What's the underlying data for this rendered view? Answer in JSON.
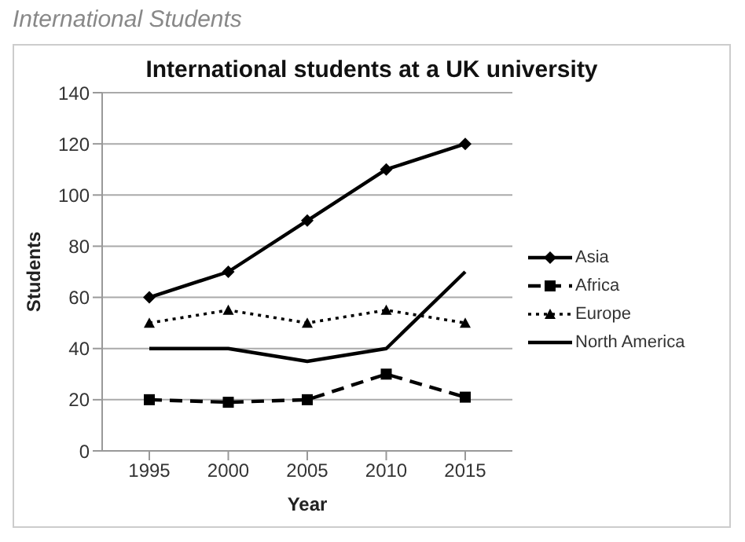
{
  "chart_data": {
    "type": "line",
    "title": "International Students",
    "subtitle": "International students at a UK university",
    "xlabel": "Year",
    "ylabel": "Students",
    "categories": [
      "1995",
      "2000",
      "2005",
      "2010",
      "2015"
    ],
    "series": [
      {
        "name": "Asia",
        "color": "#000000",
        "values": [
          60,
          70,
          90,
          110,
          120
        ],
        "marker": "diamond",
        "line_style": "solid"
      },
      {
        "name": "Africa",
        "color": "#000000",
        "values": [
          20,
          19,
          20,
          30,
          21
        ],
        "marker": "square",
        "line_style": "dashed"
      },
      {
        "name": "Europe",
        "color": "#000000",
        "values": [
          50,
          55,
          50,
          55,
          50
        ],
        "marker": "triangle",
        "line_style": "dotted"
      },
      {
        "name": "North America",
        "color": "#000000",
        "values": [
          40,
          40,
          35,
          40,
          70
        ],
        "marker": "none",
        "line_style": "solid"
      }
    ],
    "ylim": [
      0,
      140
    ],
    "yticks": [
      0,
      20,
      40,
      60,
      80,
      100,
      120,
      140
    ],
    "grid": "y",
    "legend": "right"
  }
}
